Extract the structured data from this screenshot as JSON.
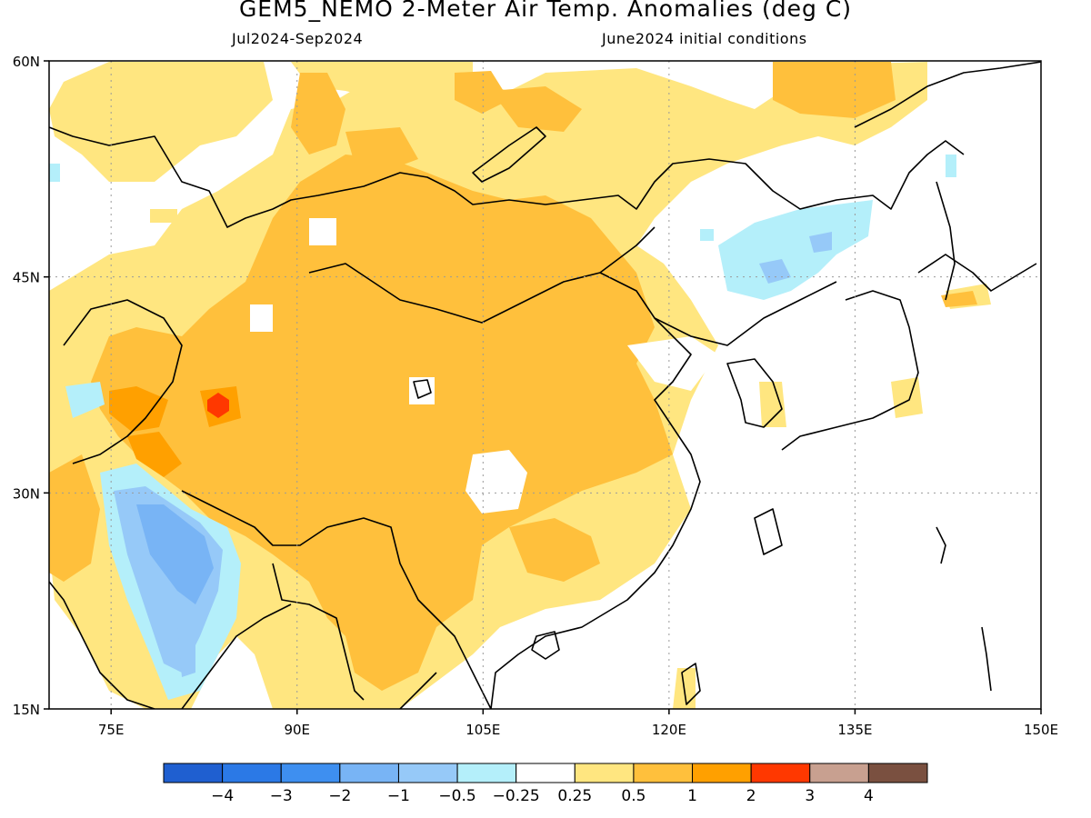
{
  "title": "GEM5_NEMO 2-Meter Air Temp. Anomalies (deg C)",
  "subtitle_left": "Jul2024-Sep2024",
  "subtitle_right": "June2024 initial conditions",
  "map": {
    "lon_range": [
      70,
      150
    ],
    "lat_range": [
      15,
      60
    ],
    "lat_ticks": [
      {
        "value": 60,
        "label": "60N"
      },
      {
        "value": 45,
        "label": "45N"
      },
      {
        "value": 30,
        "label": "30N"
      },
      {
        "value": 15,
        "label": "15N"
      }
    ],
    "lon_ticks": [
      {
        "value": 75,
        "label": "75E"
      },
      {
        "value": 90,
        "label": "90E"
      },
      {
        "value": 105,
        "label": "105E"
      },
      {
        "value": 120,
        "label": "120E"
      },
      {
        "value": 135,
        "label": "135E"
      },
      {
        "value": 150,
        "label": "150E"
      }
    ],
    "gridlines": true
  },
  "colorbar": {
    "colors": [
      "#1f5fd0",
      "#2b79e6",
      "#3e8ff0",
      "#78b4f5",
      "#96c9f8",
      "#b4effa",
      "#ffffff",
      "#ffe680",
      "#ffc03c",
      "#ffa000",
      "#ff3800",
      "#c8a090",
      "#7a5040"
    ],
    "labels": [
      "-4",
      "-3",
      "-2",
      "-1",
      "-0.5",
      "-0.25",
      "0.25",
      "0.5",
      "1",
      "2",
      "3",
      "4"
    ]
  },
  "field_colors": {
    "pos_025": "#ffe680",
    "pos_05": "#ffc03c",
    "pos_1": "#ffa000",
    "pos_2": "#ff3800",
    "neg_025": "#b4effa",
    "neg_05": "#96c9f8",
    "neg_1": "#78b4f5",
    "land": "#000000"
  }
}
